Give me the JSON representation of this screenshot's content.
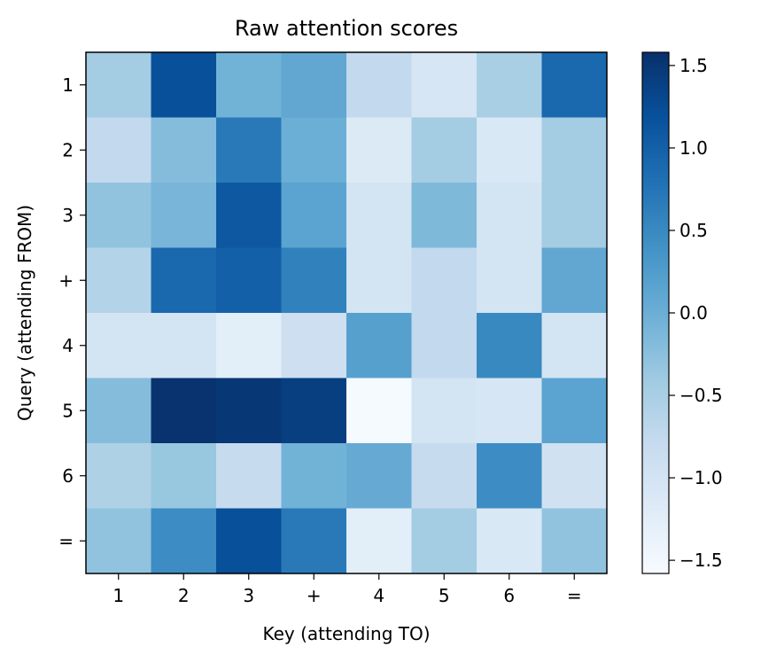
{
  "chart_data": {
    "type": "heatmap",
    "title": "Raw attention scores",
    "xlabel": "Key (attending TO)",
    "ylabel": "Query (attending FROM)",
    "x_categories": [
      "1",
      "2",
      "3",
      "+",
      "4",
      "5",
      "6",
      "="
    ],
    "y_categories": [
      "1",
      "2",
      "3",
      "+",
      "4",
      "5",
      "6",
      "="
    ],
    "values": [
      [
        -0.45,
        1.2,
        -0.05,
        0.1,
        -0.75,
        -1.05,
        -0.5,
        0.9
      ],
      [
        -0.75,
        -0.2,
        0.7,
        0.0,
        -1.15,
        -0.45,
        -1.1,
        -0.45
      ],
      [
        -0.3,
        -0.1,
        1.1,
        0.15,
        -1.0,
        -0.15,
        -1.0,
        -0.45
      ],
      [
        -0.6,
        0.9,
        1.0,
        0.6,
        -1.0,
        -0.75,
        -1.0,
        0.1
      ],
      [
        -1.0,
        -1.0,
        -1.25,
        -0.9,
        0.2,
        -0.75,
        0.5,
        -1.0
      ],
      [
        -0.2,
        1.55,
        1.5,
        1.4,
        -1.55,
        -1.0,
        -1.05,
        0.15
      ],
      [
        -0.55,
        -0.35,
        -0.8,
        -0.05,
        0.05,
        -0.8,
        0.45,
        -0.95
      ],
      [
        -0.3,
        0.45,
        1.2,
        0.7,
        -1.25,
        -0.45,
        -1.1,
        -0.3
      ]
    ],
    "colormap": "Blues",
    "zlim": [
      -1.58,
      1.58
    ],
    "colorbar_ticks": [
      "1.5",
      "1.0",
      "0.5",
      "0.0",
      "−0.5",
      "−1.0",
      "−1.5"
    ],
    "colorbar_tick_values": [
      1.5,
      1.0,
      0.5,
      0.0,
      -0.5,
      -1.0,
      -1.5
    ],
    "grid": false,
    "colorbar_position": "right"
  }
}
